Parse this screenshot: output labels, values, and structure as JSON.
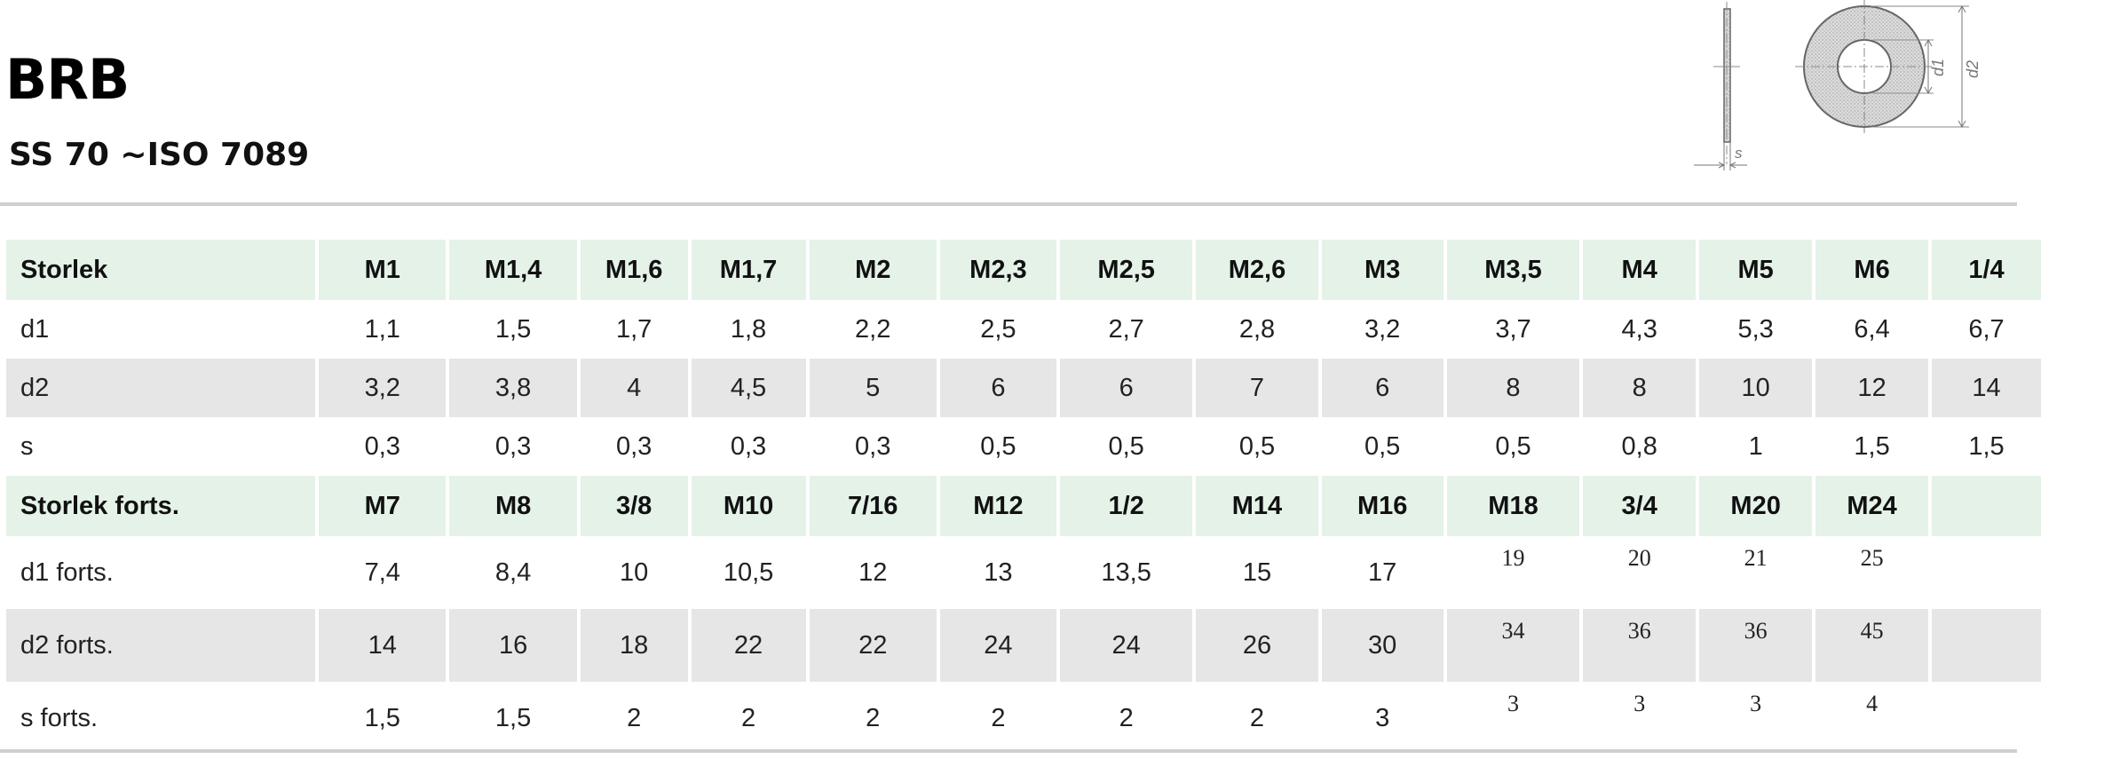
{
  "header": {
    "title": "BRB",
    "subtitle": "SS 70 ~ISO 7089"
  },
  "drawing": {
    "labels": {
      "d1": "d1",
      "d2": "d2",
      "s": "s"
    }
  },
  "table": {
    "rows": [
      {
        "label": "Storlek",
        "style": "hdr",
        "cells": [
          "M1",
          "M1,4",
          "M1,6",
          "M1,7",
          "M2",
          "M2,3",
          "M2,5",
          "M2,6",
          "M3",
          "M3,5",
          "M4",
          "M5",
          "M6",
          "1/4"
        ]
      },
      {
        "label": "d1",
        "style": "plain",
        "cells": [
          "1,1",
          "1,5",
          "1,7",
          "1,8",
          "2,2",
          "2,5",
          "2,7",
          "2,8",
          "3,2",
          "3,7",
          "4,3",
          "5,3",
          "6,4",
          "6,7"
        ]
      },
      {
        "label": "d2",
        "style": "gray",
        "cells": [
          "3,2",
          "3,8",
          "4",
          "4,5",
          "5",
          "6",
          "6",
          "7",
          "6",
          "8",
          "8",
          "10",
          "12",
          "14"
        ]
      },
      {
        "label": "s",
        "style": "plain",
        "cells": [
          "0,3",
          "0,3",
          "0,3",
          "0,3",
          "0,3",
          "0,5",
          "0,5",
          "0,5",
          "0,5",
          "0,5",
          "0,8",
          "1",
          "1,5",
          "1,5"
        ]
      },
      {
        "label": "Storlek forts.",
        "style": "hdr",
        "cells": [
          "M7",
          "M8",
          "3/8",
          "M10",
          "7/16",
          "M12",
          "1/2",
          "M14",
          "M16",
          "M18",
          "3/4",
          "M20",
          "M24",
          ""
        ]
      },
      {
        "label": "d1 forts.",
        "style": "plain tall",
        "cells": [
          "7,4",
          "8,4",
          "10",
          "10,5",
          "12",
          "13",
          "13,5",
          "15",
          "17",
          "19",
          "20",
          "21",
          "25",
          ""
        ]
      },
      {
        "label": "d2 forts.",
        "style": "gray tall",
        "cells": [
          "14",
          "16",
          "18",
          "22",
          "22",
          "24",
          "24",
          "26",
          "30",
          "34",
          "36",
          "36",
          "45",
          ""
        ]
      },
      {
        "label": "s forts.",
        "style": "plain tall",
        "cells": [
          "1,5",
          "1,5",
          "2",
          "2",
          "2",
          "2",
          "2",
          "2",
          "3",
          "3",
          "3",
          "3",
          "4",
          ""
        ]
      }
    ]
  }
}
